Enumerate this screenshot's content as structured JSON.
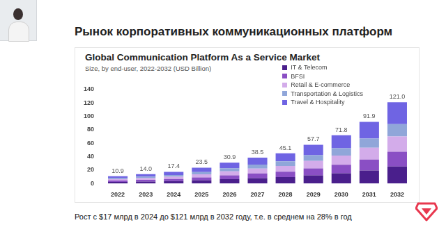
{
  "slide": {
    "title": "Рынок корпоративных коммуникационных платформ",
    "note": "Рост с $17 млрд в 2024 до $121 млрд в 2032 году, т.е. в среднем на 28% в год"
  },
  "chart_data": {
    "type": "bar",
    "title": "Global Communication Platform As a Service Market",
    "subtitle": "Size, by end-user, 2022-2032 (USD Billion)",
    "categories": [
      "2022",
      "2023",
      "2024",
      "2025",
      "2026",
      "2027",
      "2028",
      "2029",
      "2030",
      "2031",
      "2032"
    ],
    "series": [
      {
        "name": "IT & Telecom",
        "color": "#4a1f8c",
        "values": [
          2.3,
          2.9,
          3.7,
          4.9,
          6.5,
          8.1,
          9.5,
          12.1,
          15.1,
          19.3,
          25.4
        ]
      },
      {
        "name": "BFSI",
        "color": "#8a4fc4",
        "values": [
          2.0,
          2.5,
          3.1,
          4.2,
          5.6,
          6.9,
          8.1,
          10.4,
          12.9,
          16.5,
          21.8
        ]
      },
      {
        "name": "Retail & E-commerce",
        "color": "#d3acea",
        "values": [
          2.1,
          2.7,
          3.3,
          4.5,
          5.9,
          7.3,
          8.6,
          11.0,
          13.6,
          17.5,
          23.0
        ]
      },
      {
        "name": "Transportation & Logistics",
        "color": "#90a6d9",
        "values": [
          1.6,
          2.1,
          2.6,
          3.5,
          4.6,
          5.8,
          6.8,
          8.7,
          10.8,
          13.8,
          18.2
        ]
      },
      {
        "name": "Travel & Hospitality",
        "color": "#6f64e3",
        "values": [
          2.9,
          3.8,
          4.7,
          6.4,
          8.3,
          10.4,
          12.1,
          15.5,
          19.4,
          24.8,
          32.6
        ]
      }
    ],
    "totals": [
      10.9,
      14.0,
      17.4,
      23.5,
      30.9,
      38.5,
      45.1,
      57.7,
      71.8,
      91.9,
      121.0
    ],
    "total_labels": [
      "10.9",
      "14.0",
      "17.4",
      "23.5",
      "30.9",
      "38.5",
      "45.1",
      "57.7",
      "71.8",
      "91.9",
      "121.0"
    ],
    "ylim": [
      0,
      140
    ],
    "yticks": [
      0,
      20,
      40,
      60,
      80,
      100,
      120,
      140
    ],
    "stacked": true,
    "grid": false,
    "legend": "top-right"
  }
}
